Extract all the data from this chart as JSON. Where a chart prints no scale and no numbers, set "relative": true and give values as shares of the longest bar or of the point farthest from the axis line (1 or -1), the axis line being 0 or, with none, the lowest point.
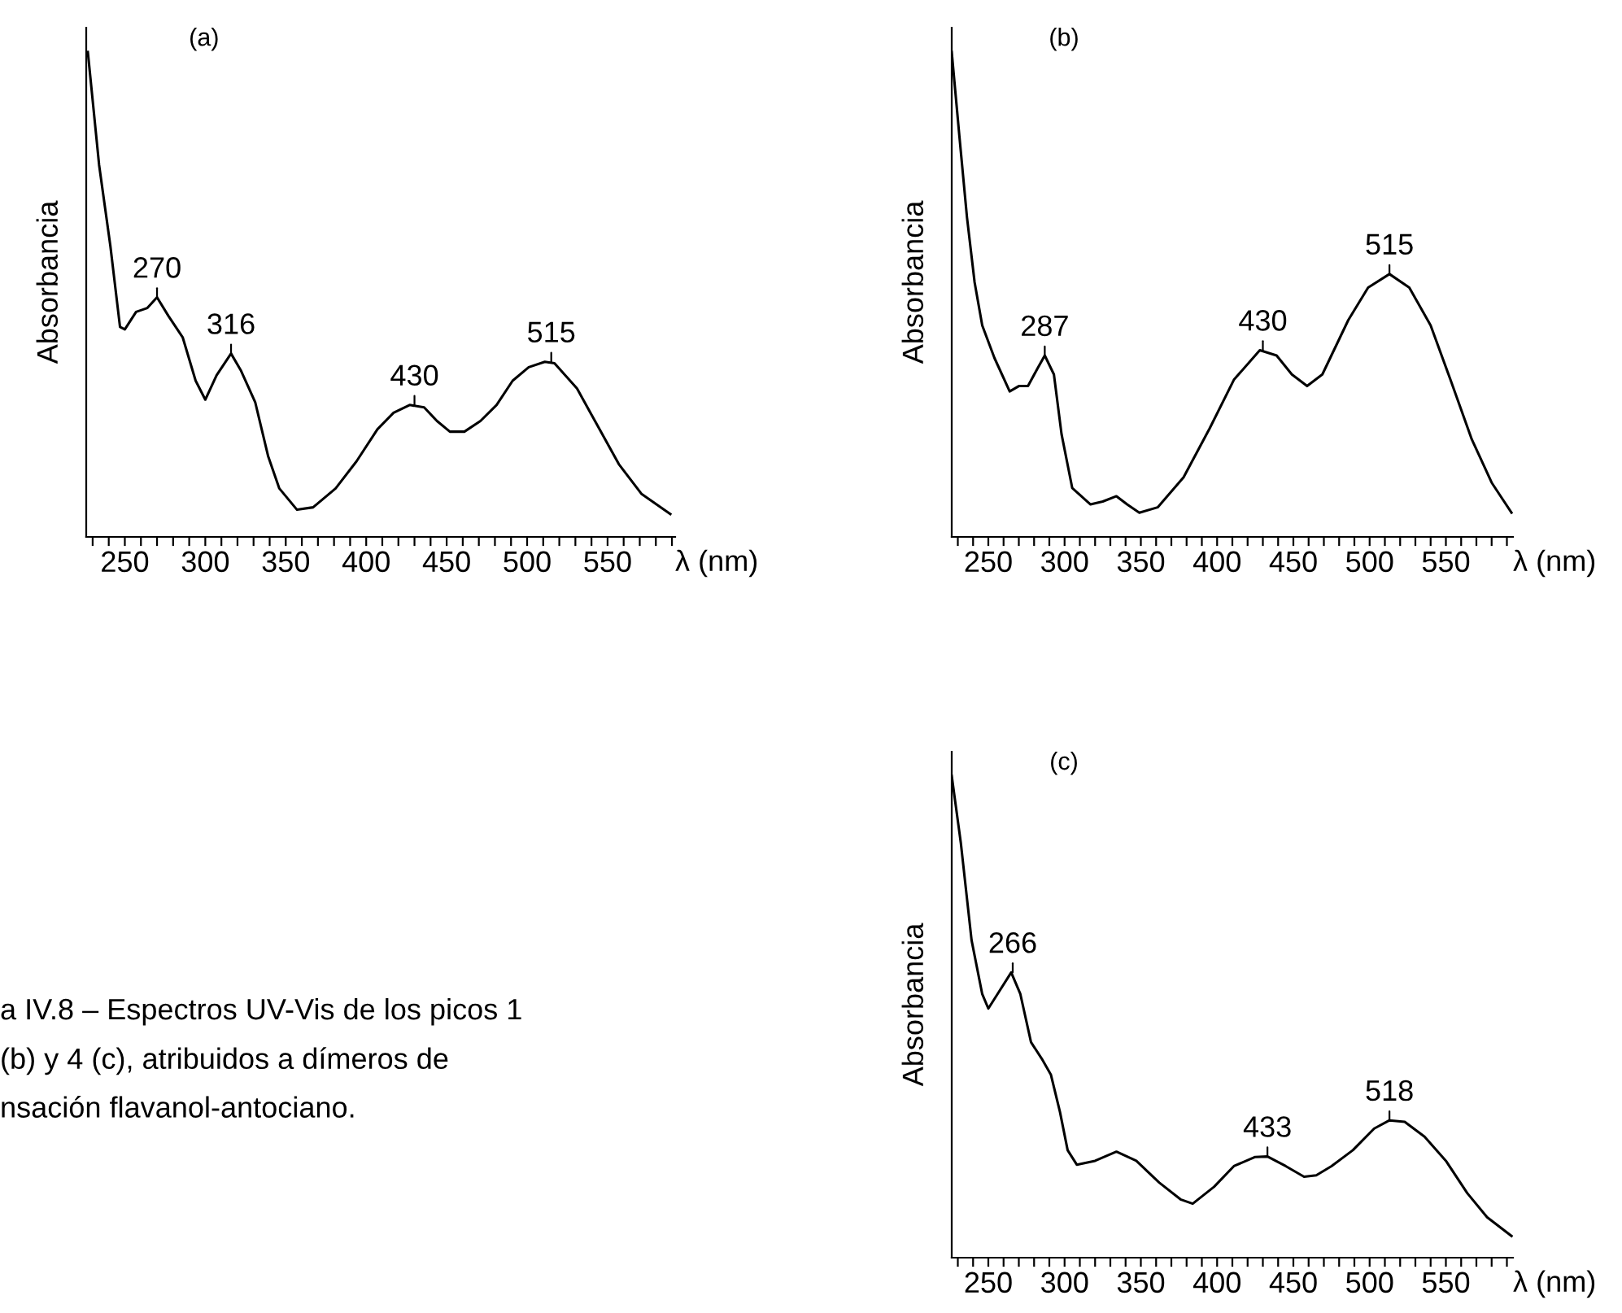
{
  "chart_data": [
    {
      "type": "line",
      "title": "(a)",
      "ylabel": "Absorbancia",
      "xlabel": "λ (nm)",
      "relative": true,
      "grid": false,
      "legend": false,
      "tick_labels": "x",
      "xlim": [
        226,
        592
      ],
      "xticks": [
        {
          "value": 230,
          "label": null
        },
        {
          "value": 240,
          "label": null
        },
        250,
        {
          "value": 260,
          "label": null
        },
        {
          "value": 270,
          "label": null
        },
        {
          "value": 280,
          "label": null
        },
        {
          "value": 290,
          "label": null
        },
        300,
        {
          "value": 310,
          "label": null
        },
        {
          "value": 320,
          "label": null
        },
        {
          "value": 330,
          "label": null
        },
        {
          "value": 340,
          "label": null
        },
        350,
        {
          "value": 360,
          "label": null
        },
        {
          "value": 370,
          "label": null
        },
        {
          "value": 380,
          "label": null
        },
        {
          "value": 390,
          "label": null
        },
        400,
        {
          "value": 410,
          "label": null
        },
        {
          "value": 420,
          "label": null
        },
        {
          "value": 430,
          "label": null
        },
        {
          "value": 440,
          "label": null
        },
        450,
        {
          "value": 460,
          "label": null
        },
        {
          "value": 470,
          "label": null
        },
        {
          "value": 480,
          "label": null
        },
        {
          "value": 490,
          "label": null
        },
        500,
        {
          "value": 510,
          "label": null
        },
        {
          "value": 520,
          "label": null
        },
        {
          "value": 530,
          "label": null
        },
        {
          "value": 540,
          "label": null
        },
        550,
        {
          "value": 560,
          "label": null
        },
        {
          "value": 570,
          "label": null
        },
        {
          "value": 580,
          "label": null
        },
        {
          "value": 590,
          "label": null
        }
      ],
      "series": [
        {
          "color": "#000000",
          "x": [
            227,
            234,
            241,
            247,
            250,
            257,
            264,
            270,
            277,
            286,
            294,
            300,
            307,
            316,
            322,
            331,
            339,
            346,
            357,
            367,
            381,
            394,
            407,
            417,
            427,
            436,
            444,
            452,
            461,
            471,
            481,
            491,
            501,
            511,
            517,
            531,
            544,
            557,
            571,
            589
          ],
          "values": [
            1.0,
            0.767,
            0.6,
            0.433,
            0.428,
            0.464,
            0.472,
            0.494,
            0.456,
            0.411,
            0.322,
            0.283,
            0.333,
            0.378,
            0.344,
            0.278,
            0.167,
            0.1,
            0.056,
            0.061,
            0.1,
            0.156,
            0.222,
            0.256,
            0.272,
            0.267,
            0.239,
            0.217,
            0.217,
            0.239,
            0.272,
            0.322,
            0.35,
            0.361,
            0.358,
            0.306,
            0.228,
            0.15,
            0.089,
            0.047
          ]
        }
      ],
      "annotations": [
        {
          "text": "270",
          "x": 270,
          "y": 0.494
        },
        {
          "text": "316",
          "x": 316,
          "y": 0.378
        },
        {
          "text": "430",
          "x": 430,
          "y": 0.272
        },
        {
          "text": "515",
          "x": 515,
          "y": 0.361
        }
      ]
    },
    {
      "type": "line",
      "title": "(b)",
      "ylabel": "Absorbancia",
      "xlabel": "λ (nm)",
      "relative": true,
      "grid": false,
      "legend": false,
      "tick_labels": "x",
      "xlim": [
        226,
        594
      ],
      "xticks": [
        {
          "value": 230,
          "label": null
        },
        {
          "value": 240,
          "label": null
        },
        250,
        {
          "value": 260,
          "label": null
        },
        {
          "value": 270,
          "label": null
        },
        {
          "value": 280,
          "label": null
        },
        {
          "value": 290,
          "label": null
        },
        300,
        {
          "value": 310,
          "label": null
        },
        {
          "value": 320,
          "label": null
        },
        {
          "value": 330,
          "label": null
        },
        {
          "value": 340,
          "label": null
        },
        350,
        {
          "value": 360,
          "label": null
        },
        {
          "value": 370,
          "label": null
        },
        {
          "value": 380,
          "label": null
        },
        {
          "value": 390,
          "label": null
        },
        400,
        {
          "value": 410,
          "label": null
        },
        {
          "value": 420,
          "label": null
        },
        {
          "value": 430,
          "label": null
        },
        {
          "value": 440,
          "label": null
        },
        450,
        {
          "value": 460,
          "label": null
        },
        {
          "value": 470,
          "label": null
        },
        {
          "value": 480,
          "label": null
        },
        {
          "value": 490,
          "label": null
        },
        500,
        {
          "value": 510,
          "label": null
        },
        {
          "value": 520,
          "label": null
        },
        {
          "value": 530,
          "label": null
        },
        {
          "value": 540,
          "label": null
        },
        550,
        {
          "value": 560,
          "label": null
        },
        {
          "value": 570,
          "label": null
        },
        {
          "value": 580,
          "label": null
        },
        {
          "value": 590,
          "label": null
        }
      ],
      "series": [
        {
          "color": "#000000",
          "x": [
            226,
            231,
            236,
            241,
            246,
            254,
            264,
            270,
            276,
            282,
            287,
            293,
            298,
            305,
            317,
            325,
            334,
            341,
            349,
            361,
            378,
            395,
            411,
            428,
            439,
            449,
            459,
            469,
            486,
            499,
            513,
            526,
            540,
            553,
            567,
            580,
            593
          ],
          "values": [
            1.0,
            0.827,
            0.659,
            0.525,
            0.436,
            0.369,
            0.3,
            0.311,
            0.311,
            0.346,
            0.374,
            0.335,
            0.212,
            0.101,
            0.067,
            0.073,
            0.084,
            0.067,
            0.05,
            0.061,
            0.123,
            0.223,
            0.324,
            0.385,
            0.374,
            0.335,
            0.311,
            0.335,
            0.447,
            0.514,
            0.542,
            0.514,
            0.436,
            0.324,
            0.201,
            0.112,
            0.05
          ]
        }
      ],
      "annotations": [
        {
          "text": "287",
          "x": 287,
          "y": 0.374
        },
        {
          "text": "430",
          "x": 430,
          "y": 0.385
        },
        {
          "text": "515",
          "x": 513,
          "y": 0.542
        }
      ]
    },
    {
      "type": "line",
      "title": "(c)",
      "ylabel": "Absorbancia",
      "xlabel": "λ (nm)",
      "relative": true,
      "grid": false,
      "legend": false,
      "tick_labels": "x",
      "xlim": [
        226,
        594
      ],
      "xticks": [
        {
          "value": 230,
          "label": null
        },
        {
          "value": 240,
          "label": null
        },
        250,
        {
          "value": 260,
          "label": null
        },
        {
          "value": 270,
          "label": null
        },
        {
          "value": 280,
          "label": null
        },
        {
          "value": 290,
          "label": null
        },
        300,
        {
          "value": 310,
          "label": null
        },
        {
          "value": 320,
          "label": null
        },
        {
          "value": 330,
          "label": null
        },
        {
          "value": 340,
          "label": null
        },
        350,
        {
          "value": 360,
          "label": null
        },
        {
          "value": 370,
          "label": null
        },
        {
          "value": 380,
          "label": null
        },
        {
          "value": 390,
          "label": null
        },
        400,
        {
          "value": 410,
          "label": null
        },
        {
          "value": 420,
          "label": null
        },
        {
          "value": 430,
          "label": null
        },
        {
          "value": 440,
          "label": null
        },
        450,
        {
          "value": 460,
          "label": null
        },
        {
          "value": 470,
          "label": null
        },
        {
          "value": 480,
          "label": null
        },
        {
          "value": 490,
          "label": null
        },
        500,
        {
          "value": 510,
          "label": null
        },
        {
          "value": 520,
          "label": null
        },
        {
          "value": 530,
          "label": null
        },
        {
          "value": 540,
          "label": null
        },
        550,
        {
          "value": 560,
          "label": null
        },
        {
          "value": 570,
          "label": null
        },
        {
          "value": 580,
          "label": null
        },
        {
          "value": 590,
          "label": null
        }
      ],
      "series": [
        {
          "color": "#000000",
          "x": [
            226,
            232,
            239,
            246,
            250,
            256,
            265,
            271,
            278,
            285,
            291,
            297,
            302,
            308,
            320,
            334,
            347,
            362,
            376,
            384,
            398,
            411,
            425,
            433,
            445,
            457,
            465,
            475,
            489,
            503,
            513,
            523,
            536,
            550,
            564,
            577,
            593
          ],
          "values": [
            1.0,
            0.86,
            0.659,
            0.547,
            0.517,
            0.547,
            0.592,
            0.547,
            0.447,
            0.413,
            0.38,
            0.302,
            0.223,
            0.193,
            0.201,
            0.22,
            0.201,
            0.156,
            0.121,
            0.112,
            0.147,
            0.19,
            0.209,
            0.21,
            0.19,
            0.168,
            0.171,
            0.19,
            0.223,
            0.268,
            0.285,
            0.282,
            0.251,
            0.201,
            0.134,
            0.084,
            0.045
          ]
        }
      ],
      "annotations": [
        {
          "text": "266",
          "x": 266,
          "y": 0.592
        },
        {
          "text": "433",
          "x": 433,
          "y": 0.21
        },
        {
          "text": "518",
          "x": 513,
          "y": 0.285
        },
        "a IV.8 – Espectros UV-Vis de los picos 1\n(b) y 4 (c), atribuidos a dímeros de\nnsación flavanol-antociano."
      ]
    }
  ]
}
